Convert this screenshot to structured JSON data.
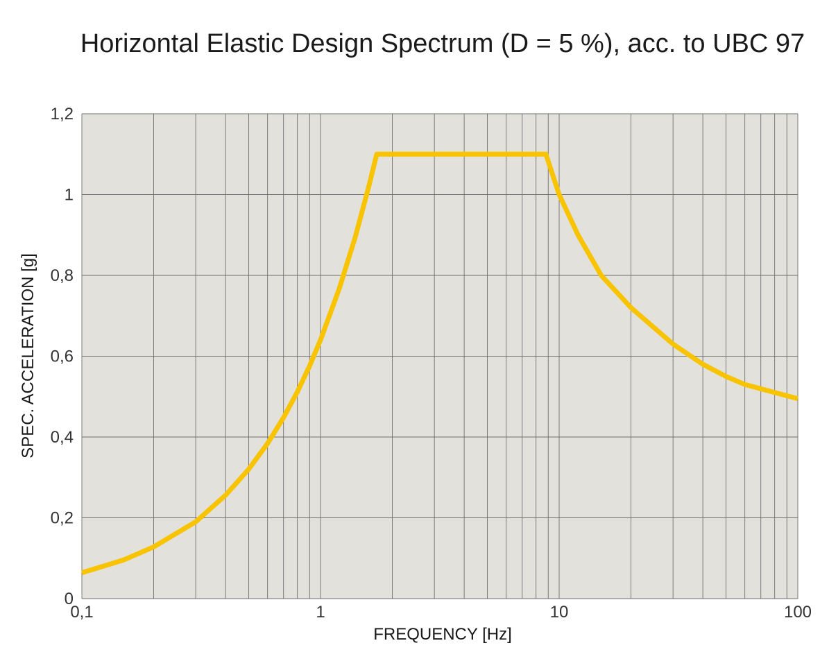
{
  "chart_data": {
    "type": "line",
    "title": "Horizontal Elastic Design Spectrum (D = 5 %), acc. to UBC 97",
    "xlabel": "FREQUENCY [Hz]",
    "ylabel": "SPEC. ACCELERATION [g]",
    "x_scale": "log",
    "xlim": [
      0.1,
      100
    ],
    "ylim": [
      0,
      1.2
    ],
    "x_ticks": [
      0.1,
      1,
      10,
      100
    ],
    "x_tick_labels": [
      "0,1",
      "1",
      "10",
      "100"
    ],
    "y_ticks": [
      0,
      0.2,
      0.4,
      0.6,
      0.8,
      1,
      1.2
    ],
    "y_tick_labels": [
      "0",
      "0,2",
      "0,4",
      "0,6",
      "0,8",
      "1",
      "1,2"
    ],
    "grid": true,
    "colors": {
      "plot_background": "#e3e1dc",
      "grid": "#6e6e6e",
      "series": "#f8c300"
    },
    "series": [
      {
        "x": [
          0.1,
          0.15,
          0.2,
          0.3,
          0.4,
          0.5,
          0.6,
          0.7,
          0.8,
          0.9,
          1.0,
          1.2,
          1.4,
          1.6,
          1.72,
          3,
          5,
          8.8,
          10,
          12,
          15,
          20,
          30,
          40,
          50,
          60,
          80,
          100
        ],
        "y": [
          0.064,
          0.096,
          0.128,
          0.19,
          0.256,
          0.32,
          0.384,
          0.448,
          0.512,
          0.576,
          0.64,
          0.768,
          0.896,
          1.024,
          1.1,
          1.1,
          1.1,
          1.1,
          1.0,
          0.9,
          0.8,
          0.72,
          0.63,
          0.58,
          0.55,
          0.53,
          0.51,
          0.495
        ]
      }
    ]
  }
}
